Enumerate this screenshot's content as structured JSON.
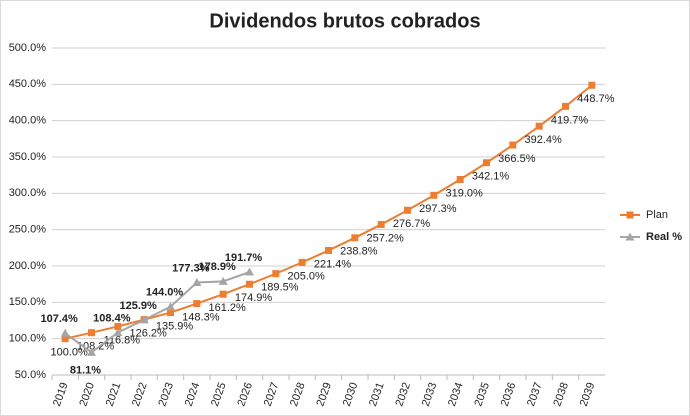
{
  "chart_data": {
    "type": "line",
    "title": "Dividendos brutos cobrados",
    "categories": [
      "2019",
      "2020",
      "2021",
      "2022",
      "2023",
      "2024",
      "2025",
      "2026",
      "2027",
      "2028",
      "2029",
      "2030",
      "2031",
      "2032",
      "2033",
      "2034",
      "2035",
      "2036",
      "2037",
      "2038",
      "2039"
    ],
    "series": [
      {
        "name": "Plan",
        "color": "#ed7d31",
        "marker": "square",
        "values": [
          100.0,
          108.2,
          116.8,
          126.2,
          135.9,
          148.3,
          161.2,
          174.9,
          189.5,
          205.0,
          221.4,
          238.8,
          257.2,
          276.7,
          297.3,
          319.0,
          342.1,
          366.5,
          392.4,
          419.7,
          448.7
        ],
        "value_labels": [
          "100.0%",
          "108.2%",
          "116.8%",
          "126.2%",
          "135.9%",
          "148.3%",
          "161.2%",
          "174.9%",
          "189.5%",
          "205.0%",
          "221.4%",
          "238.8%",
          "257.2%",
          "276.7%",
          "297.3%",
          "319.0%",
          "342.1%",
          "366.5%",
          "392.4%",
          "419.7%",
          "448.7%"
        ]
      },
      {
        "name": "Real %",
        "color": "#a5a5a5",
        "marker": "triangle",
        "values": [
          107.4,
          81.1,
          108.4,
          125.9,
          144.0,
          177.3,
          178.9,
          191.7,
          null,
          null,
          null,
          null,
          null,
          null,
          null,
          null,
          null,
          null,
          null,
          null,
          null
        ],
        "value_labels": [
          "107.4%",
          "81.1%",
          "108.4%",
          "125.9%",
          "144.0%",
          "177.3%",
          "178.9%",
          "191.7%",
          null,
          null,
          null,
          null,
          null,
          null,
          null,
          null,
          null,
          null,
          null,
          null,
          null
        ]
      }
    ],
    "ylim": [
      50,
      500
    ],
    "yticks": [
      {
        "value": 50,
        "label": "50.0%"
      },
      {
        "value": 100,
        "label": "100.0%"
      },
      {
        "value": 150,
        "label": "150.0%"
      },
      {
        "value": 200,
        "label": "200.0%"
      },
      {
        "value": 250,
        "label": "250.0%"
      },
      {
        "value": 300,
        "label": "300.0%"
      },
      {
        "value": 350,
        "label": "350.0%"
      },
      {
        "value": 400,
        "label": "400.0%"
      },
      {
        "value": 450,
        "label": "450.0%"
      },
      {
        "value": 500,
        "label": "500.0%"
      }
    ],
    "grid": true,
    "legend": "right"
  }
}
